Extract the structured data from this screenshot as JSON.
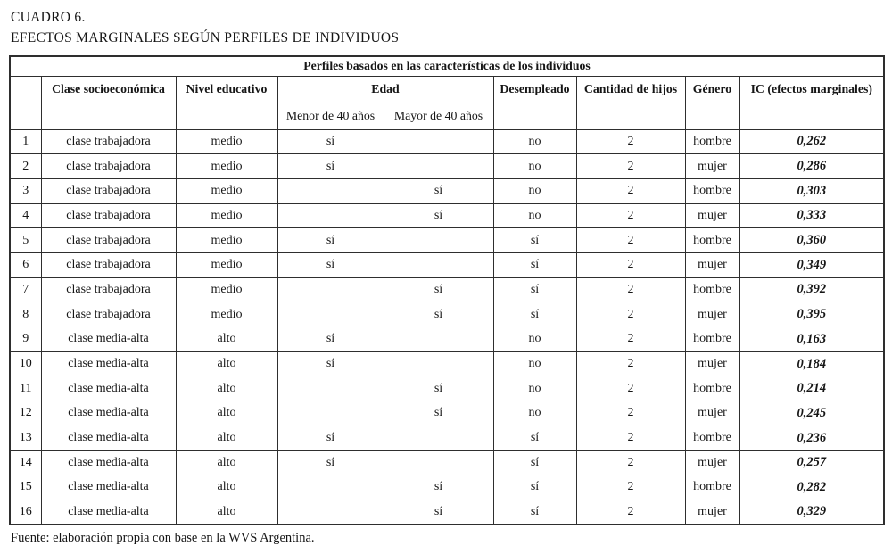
{
  "title": {
    "line1": "CUADRO 6.",
    "line2": "EFECTOS MARGINALES SEGÚN PERFILES DE INDIVIDUOS"
  },
  "table": {
    "group_header": "Perfiles basados en las características de los individuos",
    "headers": {
      "num": "",
      "clase": "Clase socioeconómica",
      "nivel": "Nivel educativo",
      "edad": "Edad",
      "menor": "Menor de 40 años",
      "mayor": "Mayor de 40 años",
      "desempleado": "Desempleado",
      "hijos": "Cantidad de hijos",
      "genero": "Género",
      "ic": "IC (efectos marginales)"
    },
    "rows": [
      {
        "num": "1",
        "clase": "clase trabajadora",
        "nivel": "medio",
        "menor": "sí",
        "mayor": "",
        "desempleado": "no",
        "hijos": "2",
        "genero": "hombre",
        "ic": "0,262"
      },
      {
        "num": "2",
        "clase": "clase trabajadora",
        "nivel": "medio",
        "menor": "sí",
        "mayor": "",
        "desempleado": "no",
        "hijos": "2",
        "genero": "mujer",
        "ic": "0,286"
      },
      {
        "num": "3",
        "clase": "clase trabajadora",
        "nivel": "medio",
        "menor": "",
        "mayor": "sí",
        "desempleado": "no",
        "hijos": "2",
        "genero": "hombre",
        "ic": "0,303"
      },
      {
        "num": "4",
        "clase": "clase trabajadora",
        "nivel": "medio",
        "menor": "",
        "mayor": "sí",
        "desempleado": "no",
        "hijos": "2",
        "genero": "mujer",
        "ic": "0,333"
      },
      {
        "num": "5",
        "clase": "clase trabajadora",
        "nivel": "medio",
        "menor": "sí",
        "mayor": "",
        "desempleado": "sí",
        "hijos": "2",
        "genero": "hombre",
        "ic": "0,360"
      },
      {
        "num": "6",
        "clase": "clase trabajadora",
        "nivel": "medio",
        "menor": "sí",
        "mayor": "",
        "desempleado": "sí",
        "hijos": "2",
        "genero": "mujer",
        "ic": "0,349"
      },
      {
        "num": "7",
        "clase": "clase trabajadora",
        "nivel": "medio",
        "menor": "",
        "mayor": "sí",
        "desempleado": "sí",
        "hijos": "2",
        "genero": "hombre",
        "ic": "0,392"
      },
      {
        "num": "8",
        "clase": "clase trabajadora",
        "nivel": "medio",
        "menor": "",
        "mayor": "sí",
        "desempleado": "sí",
        "hijos": "2",
        "genero": "mujer",
        "ic": "0,395"
      },
      {
        "num": "9",
        "clase": "clase media-alta",
        "nivel": "alto",
        "menor": "sí",
        "mayor": "",
        "desempleado": "no",
        "hijos": "2",
        "genero": "hombre",
        "ic": "0,163"
      },
      {
        "num": "10",
        "clase": "clase media-alta",
        "nivel": "alto",
        "menor": "sí",
        "mayor": "",
        "desempleado": "no",
        "hijos": "2",
        "genero": "mujer",
        "ic": "0,184"
      },
      {
        "num": "11",
        "clase": "clase media-alta",
        "nivel": "alto",
        "menor": "",
        "mayor": "sí",
        "desempleado": "no",
        "hijos": "2",
        "genero": "hombre",
        "ic": "0,214"
      },
      {
        "num": "12",
        "clase": "clase media-alta",
        "nivel": "alto",
        "menor": "",
        "mayor": "sí",
        "desempleado": "no",
        "hijos": "2",
        "genero": "mujer",
        "ic": "0,245"
      },
      {
        "num": "13",
        "clase": "clase media-alta",
        "nivel": "alto",
        "menor": "sí",
        "mayor": "",
        "desempleado": "sí",
        "hijos": "2",
        "genero": "hombre",
        "ic": "0,236"
      },
      {
        "num": "14",
        "clase": "clase media-alta",
        "nivel": "alto",
        "menor": "sí",
        "mayor": "",
        "desempleado": "sí",
        "hijos": "2",
        "genero": "mujer",
        "ic": "0,257"
      },
      {
        "num": "15",
        "clase": "clase media-alta",
        "nivel": "alto",
        "menor": "",
        "mayor": "sí",
        "desempleado": "sí",
        "hijos": "2",
        "genero": "hombre",
        "ic": "0,282"
      },
      {
        "num": "16",
        "clase": "clase media-alta",
        "nivel": "alto",
        "menor": "",
        "mayor": "sí",
        "desempleado": "sí",
        "hijos": "2",
        "genero": "mujer",
        "ic": "0,329"
      }
    ]
  },
  "footer": {
    "source": "Fuente: elaboración propia con base en la WVS Argentina."
  }
}
